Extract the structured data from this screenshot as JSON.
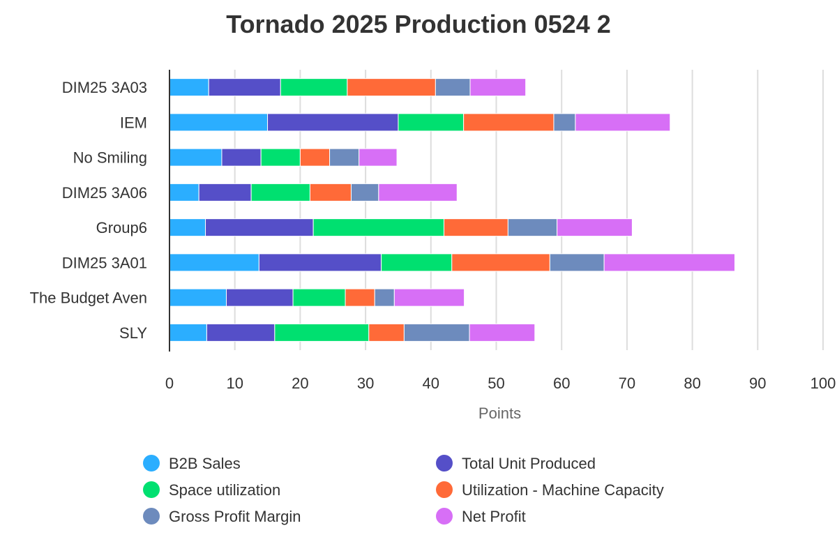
{
  "chart_data": {
    "type": "bar",
    "orientation": "horizontal",
    "stacked": true,
    "title": "Tornado 2025 Production 0524 2",
    "xlabel": "Points",
    "ylabel": "",
    "xlim": [
      0,
      100
    ],
    "x_ticks": [
      "0",
      "10",
      "20",
      "30",
      "40",
      "50",
      "60",
      "70",
      "80",
      "90",
      "100"
    ],
    "grid": true,
    "legend_position": "bottom",
    "categories": [
      "DIM25 3A03",
      "IEM",
      "No Smiling",
      "DIM25 3A06",
      "Group6",
      "DIM25 3A01",
      "The Budget Aven",
      "SLY"
    ],
    "series": [
      {
        "name": "B2B Sales",
        "color": "#2BAEFF",
        "values": [
          6,
          15,
          8,
          4.5,
          5.5,
          13.7,
          8.7,
          5.7
        ]
      },
      {
        "name": "Total Unit Produced",
        "color": "#554FC8",
        "values": [
          11,
          20,
          6,
          8,
          16.5,
          18.7,
          10.2,
          10.4
        ]
      },
      {
        "name": "Space utilization",
        "color": "#00E070",
        "values": [
          10.2,
          10,
          6,
          9,
          20,
          10.8,
          8,
          14.4
        ]
      },
      {
        "name": "Utilization - Machine Capacity",
        "color": "#FF6A38",
        "values": [
          13.5,
          13.8,
          4.5,
          6.3,
          9.8,
          15,
          4.5,
          5.4
        ]
      },
      {
        "name": "Gross Profit Margin",
        "color": "#6D8BBD",
        "values": [
          5.3,
          3.3,
          4.5,
          4.2,
          7.5,
          8.3,
          3,
          10
        ]
      },
      {
        "name": "Net Profit",
        "color": "#D76FF6",
        "values": [
          8.5,
          14.5,
          5.8,
          12,
          11.5,
          20,
          10.7,
          10
        ]
      }
    ]
  }
}
